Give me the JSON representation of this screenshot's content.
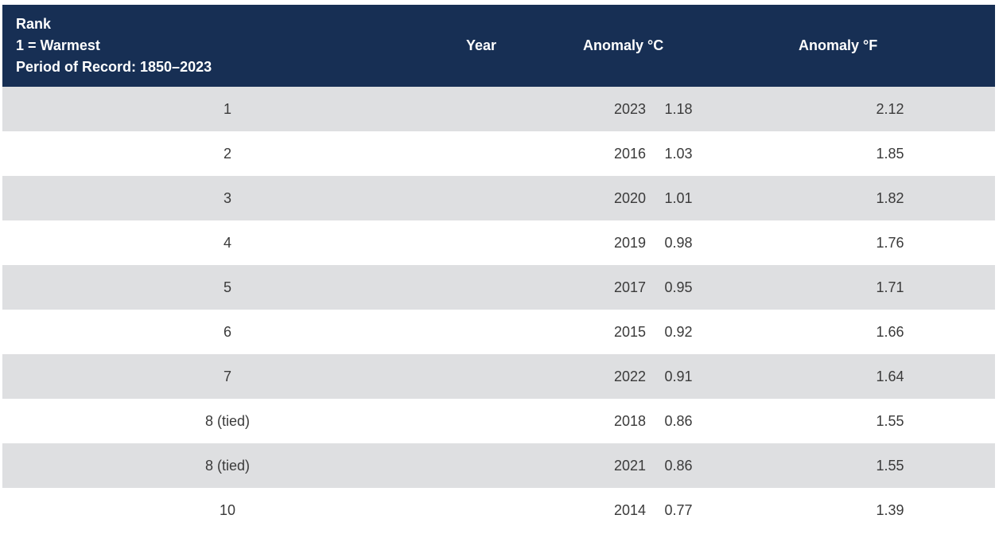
{
  "table": {
    "headers": {
      "rank_lines": [
        "Rank",
        "1 = Warmest",
        "Period of Record: 1850–2023"
      ],
      "year": "Year",
      "anomaly_c": "Anomaly °C",
      "anomaly_f": "Anomaly °F"
    },
    "rows": [
      {
        "rank": "1",
        "year": "2023",
        "anomaly_c": "1.18",
        "anomaly_f": "2.12"
      },
      {
        "rank": "2",
        "year": "2016",
        "anomaly_c": "1.03",
        "anomaly_f": "1.85"
      },
      {
        "rank": "3",
        "year": "2020",
        "anomaly_c": "1.01",
        "anomaly_f": "1.82"
      },
      {
        "rank": "4",
        "year": "2019",
        "anomaly_c": "0.98",
        "anomaly_f": "1.76"
      },
      {
        "rank": "5",
        "year": "2017",
        "anomaly_c": "0.95",
        "anomaly_f": "1.71"
      },
      {
        "rank": "6",
        "year": "2015",
        "anomaly_c": "0.92",
        "anomaly_f": "1.66"
      },
      {
        "rank": "7",
        "year": "2022",
        "anomaly_c": "0.91",
        "anomaly_f": "1.64"
      },
      {
        "rank": "8 (tied)",
        "year": "2018",
        "anomaly_c": "0.86",
        "anomaly_f": "1.55"
      },
      {
        "rank": "8 (tied)",
        "year": "2021",
        "anomaly_c": "0.86",
        "anomaly_f": "1.55"
      },
      {
        "rank": "10",
        "year": "2014",
        "anomaly_c": "0.77",
        "anomaly_f": "1.39"
      }
    ],
    "colors": {
      "header_bg": "#172f54",
      "header_text": "#ffffff",
      "row_stripe": "#dedfe1",
      "row_plain": "#ffffff",
      "cell_text": "#3a3a3a"
    }
  }
}
